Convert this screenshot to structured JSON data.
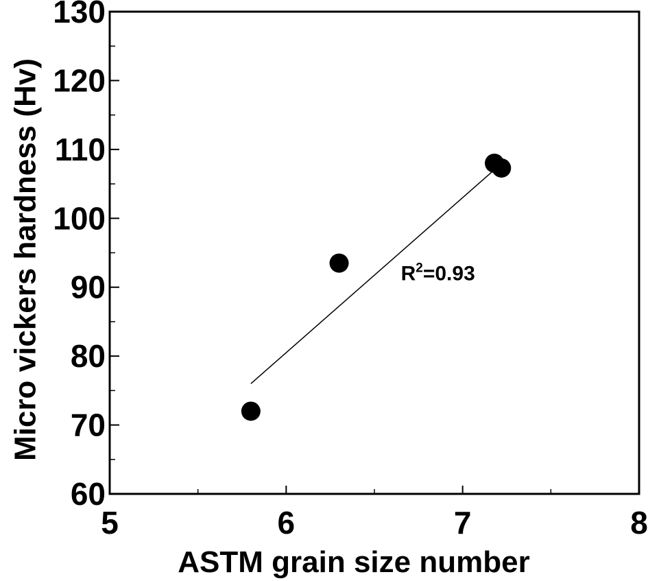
{
  "chart_data": {
    "type": "scatter",
    "xlabel": "ASTM grain size number",
    "ylabel": "Micro vickers hardness (Hv)",
    "xlim": [
      5,
      8
    ],
    "ylim": [
      60,
      130
    ],
    "xticks": [
      5,
      6,
      7,
      8
    ],
    "yticks": [
      60,
      70,
      80,
      90,
      100,
      110,
      120,
      130
    ],
    "grid": false,
    "series": [
      {
        "points": [
          {
            "x": 5.8,
            "y": 72
          },
          {
            "x": 6.3,
            "y": 93.5
          },
          {
            "x": 7.18,
            "y": 108
          },
          {
            "x": 7.22,
            "y": 107.3
          }
        ],
        "color": "#000000"
      }
    ],
    "trendline": {
      "type": "linear",
      "x": [
        5.8,
        7.2
      ],
      "y": [
        76,
        107.5
      ],
      "color": "#000000"
    },
    "annotations": [
      {
        "prefix": "R",
        "superscript": "2",
        "suffix": "=0.93",
        "x": 6.65,
        "y": 91
      }
    ]
  }
}
